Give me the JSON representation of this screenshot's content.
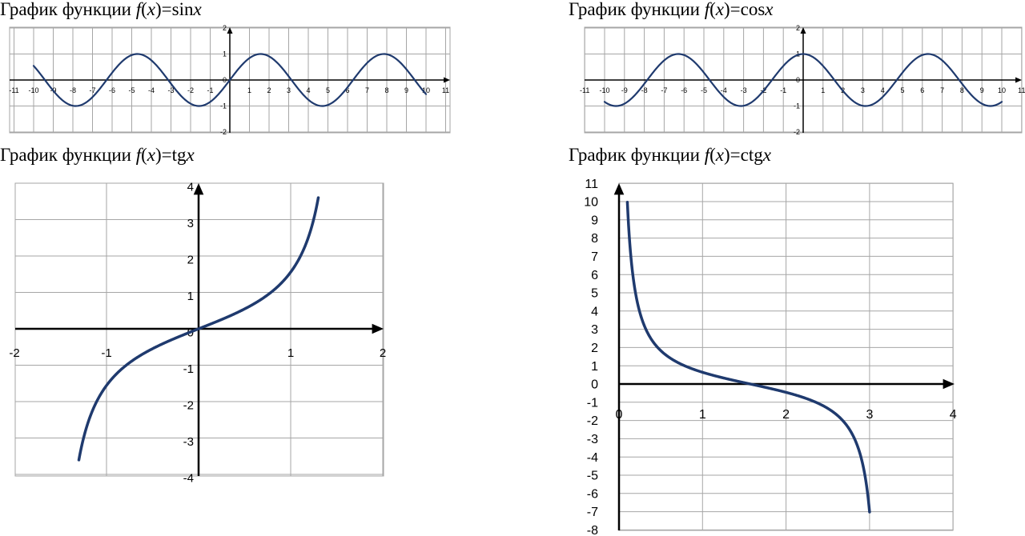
{
  "charts": [
    {
      "title": {
        "prefix": "График функции ",
        "f": "f",
        "open": "(",
        "x": "x",
        "close": ")",
        "eq": "=",
        "fn": "sin",
        "arg": "x"
      },
      "chart_data": {
        "type": "line",
        "function": "sin",
        "xlim": [
          -11,
          11
        ],
        "ylim": [
          -2,
          2
        ],
        "x_ticks": [
          -11,
          -10,
          -9,
          -8,
          -7,
          -6,
          -5,
          -4,
          -3,
          -2,
          -1,
          0,
          1,
          2,
          3,
          4,
          5,
          6,
          7,
          8,
          9,
          10,
          11
        ],
        "y_ticks": [
          -2,
          -1,
          0,
          1,
          2
        ],
        "x_range": [
          -10,
          10
        ],
        "grid": true,
        "series": [
          {
            "name": "",
            "x": [
              -10,
              -9,
              -8,
              -7,
              -6,
              -5,
              -4,
              -3,
              -2,
              -1,
              0,
              1,
              2,
              3,
              4,
              5,
              6,
              7,
              8,
              9,
              10
            ],
            "y": [
              0.54,
              -0.41,
              -0.99,
              -0.66,
              0.28,
              0.96,
              0.76,
              -0.14,
              -0.91,
              -0.84,
              0,
              0.84,
              0.91,
              0.14,
              -0.76,
              -0.96,
              -0.28,
              0.66,
              0.99,
              0.41,
              -0.54
            ]
          }
        ]
      },
      "color": "#1f3a6e"
    },
    {
      "title": {
        "prefix": "График функции ",
        "f": "f",
        "open": "(",
        "x": "x",
        "close": ")",
        "eq": "=",
        "fn": "cos",
        "arg": "x"
      },
      "chart_data": {
        "type": "line",
        "function": "cos",
        "xlim": [
          -11,
          11
        ],
        "ylim": [
          -2,
          2
        ],
        "x_ticks": [
          -11,
          -10,
          -9,
          -8,
          -7,
          -6,
          -5,
          -4,
          -3,
          -2,
          -1,
          0,
          1,
          2,
          3,
          4,
          5,
          6,
          7,
          8,
          9,
          10,
          11
        ],
        "y_ticks": [
          -2,
          -1,
          0,
          1,
          2
        ],
        "x_range": [
          -10,
          10
        ],
        "grid": true,
        "series": [
          {
            "name": "",
            "x": [
              -10,
              -9,
              -8,
              -7,
              -6,
              -5,
              -4,
              -3,
              -2,
              -1,
              0,
              1,
              2,
              3,
              4,
              5,
              6,
              7,
              8,
              9,
              10
            ],
            "y": [
              -0.84,
              -0.91,
              -0.15,
              0.75,
              0.96,
              0.28,
              -0.65,
              -0.99,
              -0.42,
              0.54,
              1,
              0.54,
              -0.42,
              -0.99,
              -0.65,
              0.28,
              0.96,
              0.75,
              -0.15,
              -0.91,
              -0.84
            ]
          }
        ]
      },
      "color": "#1f3a6e"
    },
    {
      "title": {
        "prefix": "График функции ",
        "f": "f",
        "open": "(",
        "x": "x",
        "close": ")",
        "eq": "=",
        "fn": "tg",
        "arg": "x"
      },
      "chart_data": {
        "type": "line",
        "function": "tan",
        "xlim": [
          -2,
          2
        ],
        "ylim": [
          -4,
          4
        ],
        "x_ticks": [
          -2,
          -1,
          0,
          1,
          2
        ],
        "y_ticks": [
          -4,
          -3,
          -2,
          -1,
          0,
          1,
          2,
          3,
          4
        ],
        "x_range": [
          -1.3,
          1.3
        ],
        "grid": true,
        "series": [
          {
            "name": "",
            "x": [
              -1.3,
              -1.2,
              -1.0,
              -0.8,
              -0.6,
              -0.4,
              -0.2,
              0,
              0.2,
              0.4,
              0.6,
              0.8,
              1.0,
              1.2,
              1.3
            ],
            "y": [
              -3.6,
              -2.57,
              -1.56,
              -1.03,
              -0.68,
              -0.42,
              -0.2,
              0,
              0.2,
              0.42,
              0.68,
              1.03,
              1.56,
              2.57,
              3.6
            ]
          }
        ]
      },
      "color": "#1f3a6e"
    },
    {
      "title": {
        "prefix": "График функции ",
        "f": "f",
        "open": "(",
        "x": "x",
        "close": ")",
        "eq": "=",
        "fn": "ctg",
        "arg": "x"
      },
      "chart_data": {
        "type": "line",
        "function": "cot",
        "xlim": [
          0,
          4
        ],
        "ylim": [
          -8,
          11
        ],
        "x_ticks": [
          0,
          1,
          2,
          3,
          4
        ],
        "y_ticks": [
          -8,
          -7,
          -6,
          -5,
          -4,
          -3,
          -2,
          -1,
          0,
          1,
          2,
          3,
          4,
          5,
          6,
          7,
          8,
          9,
          10,
          11
        ],
        "x_range": [
          0.1,
          3.0
        ],
        "grid": true,
        "series": [
          {
            "name": "",
            "x": [
              0.1,
              0.2,
              0.4,
              0.6,
              0.8,
              1.0,
              1.2,
              1.4,
              1.6,
              1.8,
              2.0,
              2.2,
              2.4,
              2.6,
              2.8,
              3.0
            ],
            "y": [
              9.97,
              4.93,
              2.37,
              1.46,
              0.97,
              0.64,
              0.39,
              0.17,
              -0.03,
              -0.23,
              -0.46,
              -0.73,
              -1.09,
              -1.67,
              -2.96,
              -7.02
            ]
          }
        ]
      },
      "color": "#1f3a6e"
    }
  ]
}
